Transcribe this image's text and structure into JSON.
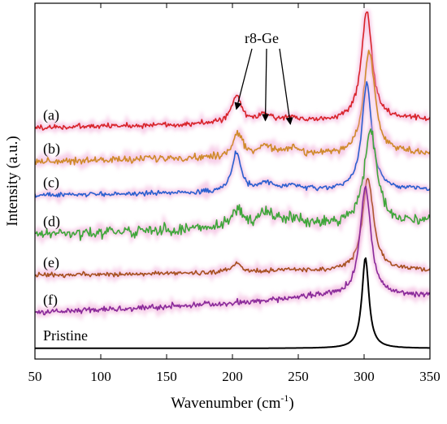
{
  "chart_data": {
    "type": "line",
    "title": "",
    "xlabel": "Wavenumber (cm",
    "xlabel_sup": "-1",
    "xlabel_suffix": ")",
    "ylabel": "Intensity (a.u.)",
    "xlim": [
      50,
      350
    ],
    "ylim": [
      0,
      10
    ],
    "x_ticks": [
      50,
      100,
      150,
      200,
      250,
      300,
      350
    ],
    "grid": false,
    "legend": "none",
    "annotation": {
      "text": "r8-Ge",
      "arrow_targets": [
        {
          "x": 203,
          "y": 7.02
        },
        {
          "x": 225,
          "y": 6.7
        },
        {
          "x": 244,
          "y": 6.6
        }
      ]
    },
    "series": [
      {
        "name": "(a)",
        "color": "#d8232a",
        "glow": "#f0a6d6",
        "baseline": 6.5,
        "slope": 0.0008,
        "noise": 0.055,
        "peaks": [
          {
            "x": 302,
            "height": 3.1,
            "width": 4.8
          },
          {
            "x": 203,
            "height": 0.75,
            "width": 4.5
          },
          {
            "x": 225,
            "height": 0.2,
            "width": 7
          },
          {
            "x": 245,
            "height": 0.12,
            "width": 8
          }
        ]
      },
      {
        "name": "(b)",
        "color": "#cf8a2a",
        "glow": "#f0a6d6",
        "baseline": 5.55,
        "slope": 0.0008,
        "noise": 0.07,
        "peaks": [
          {
            "x": 304,
            "height": 2.9,
            "width": 5.2
          },
          {
            "x": 204,
            "height": 0.6,
            "width": 4.5
          },
          {
            "x": 225,
            "height": 0.28,
            "width": 7
          },
          {
            "x": 245,
            "height": 0.18,
            "width": 8
          }
        ]
      },
      {
        "name": "(c)",
        "color": "#2a5fcf",
        "glow": "#f0a6d6",
        "baseline": 4.6,
        "slope": 0.0006,
        "noise": 0.045,
        "peaks": [
          {
            "x": 302,
            "height": 3.0,
            "width": 4.5
          },
          {
            "x": 203,
            "height": 1.1,
            "width": 4.0
          },
          {
            "x": 225,
            "height": 0.22,
            "width": 7
          },
          {
            "x": 245,
            "height": 0.14,
            "width": 8
          }
        ]
      },
      {
        "name": "(d)",
        "color": "#3fa63a",
        "glow": "#f0a6d6",
        "baseline": 3.5,
        "slope": 0.0012,
        "noise": 0.11,
        "peaks": [
          {
            "x": 305,
            "height": 2.7,
            "width": 5.5
          },
          {
            "x": 204,
            "height": 0.45,
            "width": 5
          },
          {
            "x": 225,
            "height": 0.35,
            "width": 8
          },
          {
            "x": 245,
            "height": 0.2,
            "width": 9
          }
        ]
      },
      {
        "name": "(e)",
        "color": "#a6501f",
        "glow": "#f0a6d6",
        "baseline": 2.35,
        "slope": 0.0005,
        "noise": 0.045,
        "peaks": [
          {
            "x": 303,
            "height": 2.6,
            "width": 5.0
          },
          {
            "x": 203,
            "height": 0.22,
            "width": 5
          },
          {
            "x": 245,
            "height": 0.08,
            "width": 8
          }
        ]
      },
      {
        "name": "(f)",
        "color": "#8a2a9a",
        "glow": "#f0a6d6",
        "baseline": 1.3,
        "slope": 0.0016,
        "noise": 0.06,
        "peaks": [
          {
            "x": 301,
            "height": 3.05,
            "width": 5.0
          },
          {
            "x": 260,
            "height": 0.12,
            "width": 30
          }
        ]
      },
      {
        "name": "Pristine",
        "color": "#000000",
        "glow": "none",
        "baseline": 0.3,
        "slope": 0,
        "noise": 0.0,
        "peaks": [
          {
            "x": 301,
            "height": 2.55,
            "width": 3.2
          }
        ]
      }
    ]
  }
}
